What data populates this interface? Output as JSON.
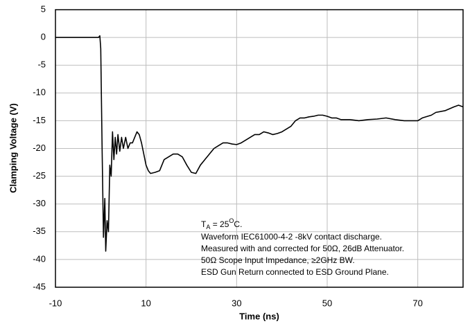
{
  "chart_data": {
    "type": "line",
    "x_label": "Time (ns)",
    "y_label": "Clamping Voltage (V)",
    "xlim": [
      -10,
      80
    ],
    "xticks": [
      -10,
      10,
      30,
      50,
      70
    ],
    "ylim": [
      -45,
      5
    ],
    "yticks": [
      5,
      0,
      -5,
      -10,
      -15,
      -20,
      -25,
      -30,
      -35,
      -40,
      -45
    ],
    "grid": true,
    "color": "#000000",
    "annotation_first_line": [
      "T",
      "A",
      " = 25",
      "O",
      "C."
    ],
    "annotations": [
      "Waveform IEC61000-4-2 -8kV contact discharge.",
      "Measured with and corrected for 50Ω, 26dB Attenuator.",
      "50Ω Scope Input Impedance, ≥2GHz BW.",
      "ESD Gun Return connected to ESD Ground Plane."
    ],
    "x": [
      -10,
      -0.5,
      -0.2,
      0,
      0.3,
      0.6,
      0.9,
      1.1,
      1.4,
      1.7,
      2,
      2.3,
      2.6,
      2.9,
      3.2,
      3.5,
      3.8,
      4.2,
      4.6,
      5,
      5.5,
      6,
      6.5,
      7,
      7.5,
      8,
      8.5,
      9,
      9.5,
      10,
      10.5,
      11,
      12,
      13,
      14,
      15,
      16,
      17,
      18,
      19,
      20,
      21,
      22,
      23,
      24,
      25,
      26,
      27,
      28,
      29,
      30,
      31,
      32,
      33,
      34,
      35,
      36,
      37,
      38,
      39,
      40,
      41,
      42,
      43,
      44,
      45,
      46,
      47,
      48,
      49,
      50,
      51,
      52,
      53,
      55,
      57,
      59,
      61,
      63,
      65,
      67,
      69,
      70,
      71,
      73,
      74,
      76,
      78,
      79,
      80
    ],
    "values": [
      0,
      0,
      0.3,
      -2,
      -20,
      -36,
      -29,
      -38.5,
      -33,
      -35,
      -23,
      -25,
      -17,
      -22,
      -18,
      -21,
      -17.5,
      -20.5,
      -18,
      -20,
      -18,
      -20,
      -19,
      -19,
      -18,
      -17,
      -17.5,
      -19,
      -21,
      -23,
      -24,
      -24.5,
      -24.3,
      -24,
      -22,
      -21.5,
      -21,
      -21,
      -21.5,
      -23,
      -24.3,
      -24.5,
      -23,
      -22,
      -21,
      -20,
      -19.5,
      -19,
      -19,
      -19.2,
      -19.3,
      -19,
      -18.5,
      -18,
      -17.5,
      -17.5,
      -17,
      -17.2,
      -17.5,
      -17.3,
      -17,
      -16.5,
      -16,
      -15,
      -14.5,
      -14.5,
      -14.3,
      -14.2,
      -14,
      -14,
      -14.2,
      -14.5,
      -14.5,
      -14.8,
      -14.8,
      -15,
      -14.8,
      -14.7,
      -14.5,
      -14.8,
      -15,
      -15,
      -15,
      -14.5,
      -14,
      -13.5,
      -13.2,
      -12.5,
      -12.2,
      -12.5
    ]
  }
}
